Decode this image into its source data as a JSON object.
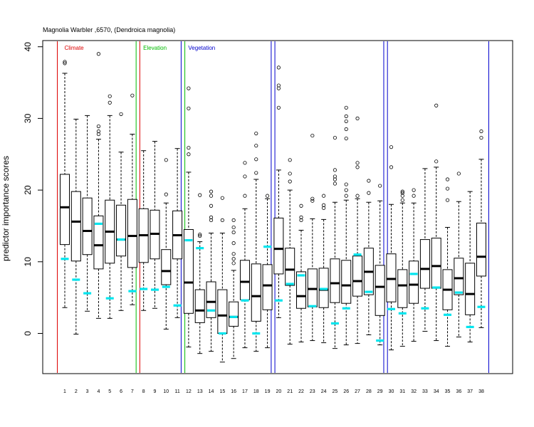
{
  "chart_data": {
    "type": "boxplot",
    "title": "Magnolia Warbler ,6570, (Dendroica magnolia)",
    "xlabel": "",
    "ylabel": "predictor importance scores",
    "ylim": [
      -5.5,
      40.5
    ],
    "yticks": [
      0,
      10,
      20,
      30,
      40
    ],
    "categories": [
      "1",
      "2",
      "3",
      "4",
      "5",
      "6",
      "7",
      "8",
      "9",
      "10",
      "11",
      "12",
      "13",
      "14",
      "15",
      "16",
      "17",
      "18",
      "19",
      "20",
      "21",
      "22",
      "23",
      "24",
      "25",
      "26",
      "27",
      "28",
      "29",
      "30",
      "31",
      "32",
      "33",
      "34",
      "35",
      "36",
      "37",
      "38"
    ],
    "groups": [
      {
        "label": "Climate",
        "color": "#dd0000",
        "from": 1,
        "to": 7
      },
      {
        "label": "Elevation",
        "color": "#00bb00",
        "from": 8,
        "to": 11
      },
      {
        "label": "Vegetation",
        "color": "#0000cc",
        "from": 12,
        "to": 19
      },
      {
        "label": "",
        "color": "#0000cc",
        "from": 20,
        "to": 29
      },
      {
        "label": "",
        "color": "#0000cc",
        "from": 30,
        "to": 38
      }
    ],
    "series": [
      {
        "name": "",
        "boxes": [
          {
            "wl": 3.6,
            "q1": 12.4,
            "med": 17.6,
            "q3": 22.2,
            "wh": 36.3,
            "out": [
              37.7,
              37.9
            ]
          },
          {
            "wl": -0.1,
            "q1": 10.1,
            "med": 15.6,
            "q3": 19.8,
            "wh": 29.9,
            "out": []
          },
          {
            "wl": 3.1,
            "q1": 11.0,
            "med": 14.3,
            "q3": 18.9,
            "wh": 30.4,
            "out": []
          },
          {
            "wl": 2.1,
            "q1": 9.0,
            "med": 12.3,
            "q3": 16.4,
            "wh": 27.1,
            "out": [
              27.8,
              28.2,
              28.9,
              39.0
            ]
          },
          {
            "wl": 2.1,
            "q1": 9.8,
            "med": 14.2,
            "q3": 18.6,
            "wh": 30.4,
            "out": [
              32.2,
              33.1
            ]
          },
          {
            "wl": 3.2,
            "q1": 10.8,
            "med": 13.1,
            "q3": 17.9,
            "wh": 25.3,
            "out": [
              30.6
            ]
          },
          {
            "wl": 4.0,
            "q1": 9.2,
            "med": 13.6,
            "q3": 18.7,
            "wh": 27.8,
            "out": [
              33.2
            ]
          },
          {
            "wl": 3.2,
            "q1": 9.9,
            "med": 13.7,
            "q3": 17.4,
            "wh": 25.5,
            "out": []
          },
          {
            "wl": 3.5,
            "q1": 10.4,
            "med": 13.9,
            "q3": 17.2,
            "wh": 26.8,
            "out": []
          },
          {
            "wl": 0.6,
            "q1": 6.8,
            "med": 8.7,
            "q3": 11.7,
            "wh": 18.2,
            "out": [
              19.4,
              24.2
            ]
          },
          {
            "wl": 2.2,
            "q1": 10.4,
            "med": 13.7,
            "q3": 17.1,
            "wh": 25.8,
            "out": []
          },
          {
            "wl": -1.9,
            "q1": 2.8,
            "med": 7.1,
            "q3": 14.5,
            "wh": 22.5,
            "out": [
              25.0,
              25.9,
              31.4,
              34.2
            ]
          },
          {
            "wl": -2.8,
            "q1": 1.5,
            "med": 3.2,
            "q3": 6.1,
            "wh": 12.8,
            "out": [
              13.6,
              13.8,
              19.3
            ]
          },
          {
            "wl": -2.5,
            "q1": 2.2,
            "med": 4.4,
            "q3": 7.2,
            "wh": 14.0,
            "out": [
              15.8,
              16.2,
              17.8,
              19.2,
              19.8
            ]
          },
          {
            "wl": -4.0,
            "q1": 0.0,
            "med": 2.5,
            "q3": 6.1,
            "wh": 14.0,
            "out": [
              15.8,
              18.9
            ]
          },
          {
            "wl": -3.5,
            "q1": 1.0,
            "med": 2.3,
            "q3": 4.4,
            "wh": 8.8,
            "out": [
              9.8,
              10.4,
              11.1,
              12.6,
              14.1,
              14.8,
              15.8
            ]
          },
          {
            "wl": -2.0,
            "q1": 4.7,
            "med": 7.2,
            "q3": 10.2,
            "wh": 17.4,
            "out": [
              19.2,
              21.9,
              23.8
            ]
          },
          {
            "wl": -2.5,
            "q1": 1.7,
            "med": 5.2,
            "q3": 9.7,
            "wh": 21.5,
            "out": [
              22.4,
              24.3,
              26.2,
              27.9
            ]
          },
          {
            "wl": -2.0,
            "q1": 3.3,
            "med": 6.7,
            "q3": 9.6,
            "wh": 18.8,
            "out": [
              19.2
            ]
          },
          {
            "wl": 2.2,
            "q1": 8.3,
            "med": 11.8,
            "q3": 16.1,
            "wh": 22.8,
            "out": [
              31.5,
              34.2,
              34.6,
              37.1
            ]
          },
          {
            "wl": -1.5,
            "q1": 6.7,
            "med": 8.9,
            "q3": 11.9,
            "wh": 20.0,
            "out": [
              21.2,
              22.3,
              24.2
            ]
          },
          {
            "wl": -1.2,
            "q1": 3.5,
            "med": 5.2,
            "q3": 8.6,
            "wh": 14.4,
            "out": [
              15.8,
              16.2,
              17.8
            ]
          },
          {
            "wl": -1.0,
            "q1": 3.7,
            "med": 6.2,
            "q3": 9.0,
            "wh": 16.0,
            "out": [
              18.5,
              18.8,
              27.6
            ]
          },
          {
            "wl": -1.3,
            "q1": 3.6,
            "med": 6.1,
            "q3": 9.1,
            "wh": 15.9,
            "out": [
              17.5,
              17.9,
              19.2
            ]
          },
          {
            "wl": -2.1,
            "q1": 4.3,
            "med": 7.0,
            "q3": 10.4,
            "wh": 18.3,
            "out": [
              20.9,
              21.5,
              21.9,
              22.8,
              27.3
            ]
          },
          {
            "wl": -1.6,
            "q1": 4.2,
            "med": 6.7,
            "q3": 10.2,
            "wh": 18.6,
            "out": [
              19.2,
              20.0,
              20.8,
              27.2,
              28.5,
              29.6,
              30.3,
              31.5
            ]
          },
          {
            "wl": -1.4,
            "q1": 5.2,
            "med": 7.3,
            "q3": 10.8,
            "wh": 18.8,
            "out": [
              19.2,
              23.2,
              23.8,
              30.0
            ]
          },
          {
            "wl": -0.2,
            "q1": 5.4,
            "med": 8.6,
            "q3": 11.9,
            "wh": 18.3,
            "out": [
              19.6,
              21.3
            ]
          },
          {
            "wl": -1.6,
            "q1": 2.5,
            "med": 6.5,
            "q3": 9.5,
            "wh": 18.5,
            "out": [
              20.6
            ]
          },
          {
            "wl": -2.3,
            "q1": 4.4,
            "med": 7.6,
            "q3": 11.1,
            "wh": 18.0,
            "out": [
              23.2,
              26.0
            ]
          },
          {
            "wl": -1.8,
            "q1": 3.6,
            "med": 6.7,
            "q3": 8.9,
            "wh": 18.2,
            "out": [
              18.6,
              19.2,
              19.6,
              19.8
            ]
          },
          {
            "wl": -1.1,
            "q1": 4.2,
            "med": 6.8,
            "q3": 10.1,
            "wh": 18.2,
            "out": [
              19.2,
              20.0
            ]
          },
          {
            "wl": 0.3,
            "q1": 6.3,
            "med": 9.0,
            "q3": 13.1,
            "wh": 23.0,
            "out": []
          },
          {
            "wl": -1.0,
            "q1": 6.3,
            "med": 9.4,
            "q3": 13.3,
            "wh": 23.2,
            "out": [
              24.0,
              31.8
            ]
          },
          {
            "wl": -1.8,
            "q1": 3.3,
            "med": 6.1,
            "q3": 8.9,
            "wh": 14.8,
            "out": [
              18.6,
              20.2,
              21.5
            ]
          },
          {
            "wl": -0.5,
            "q1": 5.4,
            "med": 7.7,
            "q3": 10.5,
            "wh": 18.4,
            "out": [
              22.3
            ]
          },
          {
            "wl": -1.2,
            "q1": 2.6,
            "med": 5.5,
            "q3": 9.8,
            "wh": 19.8,
            "out": []
          },
          {
            "wl": 0.8,
            "q1": 8.0,
            "med": 10.7,
            "q3": 15.4,
            "wh": 24.3,
            "out": [
              27.3,
              28.2
            ]
          }
        ]
      },
      {
        "name": "",
        "color": "#00e5ee",
        "values": [
          10.4,
          7.5,
          5.6,
          15.3,
          4.9,
          13.1,
          5.9,
          6.2,
          6.1,
          6.5,
          3.9,
          13.0,
          11.9,
          3.2,
          0.0,
          2.3,
          4.6,
          0.0,
          12.1,
          4.6,
          6.9,
          8.1,
          3.8,
          6.2,
          1.4,
          3.5,
          11.0,
          5.8,
          -1.0,
          3.4,
          2.8,
          8.3,
          3.5,
          6.4,
          2.6,
          5.7,
          0.9,
          3.7
        ]
      }
    ]
  }
}
